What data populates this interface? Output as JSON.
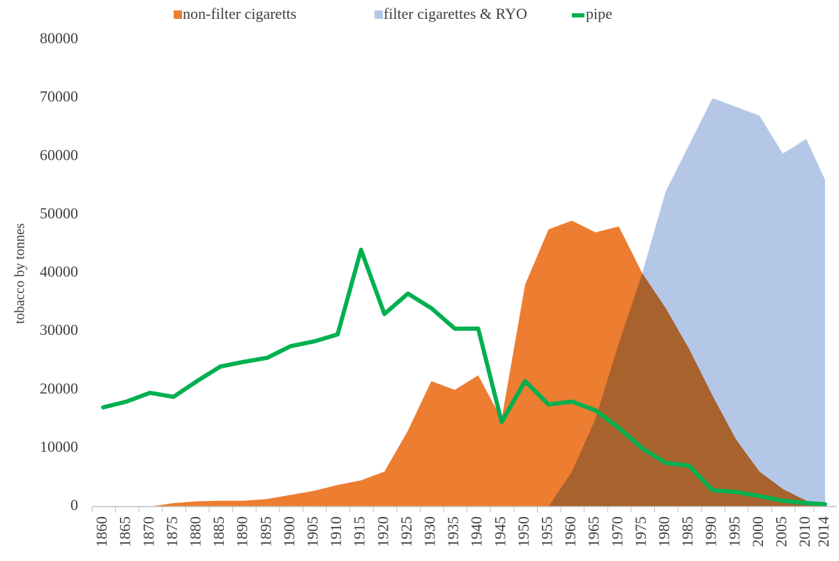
{
  "chart_data": {
    "type": "area",
    "y_label": "tobacco by tonnes",
    "x": [
      1860,
      1865,
      1870,
      1875,
      1880,
      1885,
      1890,
      1895,
      1900,
      1905,
      1910,
      1915,
      1920,
      1925,
      1930,
      1935,
      1940,
      1945,
      1950,
      1955,
      1960,
      1965,
      1970,
      1975,
      1980,
      1985,
      1990,
      1995,
      2000,
      2005,
      2010,
      2014
    ],
    "xlim": [
      1860,
      2014
    ],
    "ylim": [
      0,
      80000
    ],
    "yticks": [
      0,
      10000,
      20000,
      30000,
      40000,
      50000,
      60000,
      70000,
      80000
    ],
    "legend": "top",
    "series": [
      {
        "name": "non-filter cigaretts",
        "color": "#ed7d31",
        "kind": "area",
        "values": [
          0,
          0,
          0,
          600,
          900,
          1000,
          1000,
          1300,
          2000,
          2700,
          3700,
          4500,
          6000,
          13000,
          21500,
          20000,
          22500,
          15000,
          38000,
          47500,
          49000,
          47000,
          48000,
          40000,
          34000,
          27000,
          19000,
          11500,
          6000,
          3000,
          1000,
          300
        ]
      },
      {
        "name": "filter cigarettes & RYO",
        "color": "#b4c7e7",
        "kind": "area",
        "values": [
          0,
          0,
          0,
          0,
          0,
          0,
          0,
          0,
          0,
          0,
          0,
          0,
          0,
          0,
          0,
          0,
          0,
          0,
          0,
          0,
          6000,
          15000,
          28000,
          40000,
          54000,
          62000,
          70000,
          68500,
          67000,
          60500,
          63000,
          56000
        ]
      },
      {
        "name": "pipe",
        "color": "#00b050",
        "kind": "line",
        "values": [
          17000,
          18000,
          19500,
          18800,
          21500,
          24000,
          24800,
          25500,
          27500,
          28300,
          29500,
          44000,
          33000,
          36500,
          34000,
          30500,
          30500,
          14500,
          21500,
          17500,
          18000,
          16500,
          13500,
          10000,
          7500,
          7000,
          2800,
          2500,
          1800,
          1000,
          600,
          400
        ]
      }
    ]
  }
}
